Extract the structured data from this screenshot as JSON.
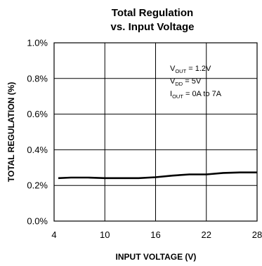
{
  "chart_data": {
    "type": "line",
    "title": "Total Regulation",
    "subtitle": "vs. Input Voltage",
    "xlabel": "INPUT VOLTAGE (V)",
    "ylabel": "TOTAL REGULATION (%)",
    "xlim": [
      4,
      28
    ],
    "ylim": [
      0,
      1.0
    ],
    "xticks": [
      4,
      10,
      16,
      22,
      28
    ],
    "yticks": [
      0,
      0.2,
      0.4,
      0.6,
      0.8,
      1.0
    ],
    "xtick_labels": [
      "4",
      "10",
      "16",
      "22",
      "28"
    ],
    "ytick_labels": [
      "0.0%",
      "0.2%",
      "0.4%",
      "0.6%",
      "0.8%",
      "1.0%"
    ],
    "grid": true,
    "annotations": [
      {
        "main": "V",
        "sub": "OUT",
        "rest": " = 1.2V"
      },
      {
        "main": "V",
        "sub": "DD",
        "rest": " = 5V"
      },
      {
        "main": "I",
        "sub": "OUT",
        "rest": " = 0A to 7A"
      }
    ],
    "series": [
      {
        "x": [
          4.5,
          6,
          8,
          10,
          12,
          14,
          16,
          18,
          20,
          22,
          24,
          26,
          28
        ],
        "y": [
          0.241,
          0.244,
          0.244,
          0.241,
          0.241,
          0.241,
          0.246,
          0.255,
          0.262,
          0.262,
          0.27,
          0.273,
          0.273
        ]
      }
    ]
  }
}
